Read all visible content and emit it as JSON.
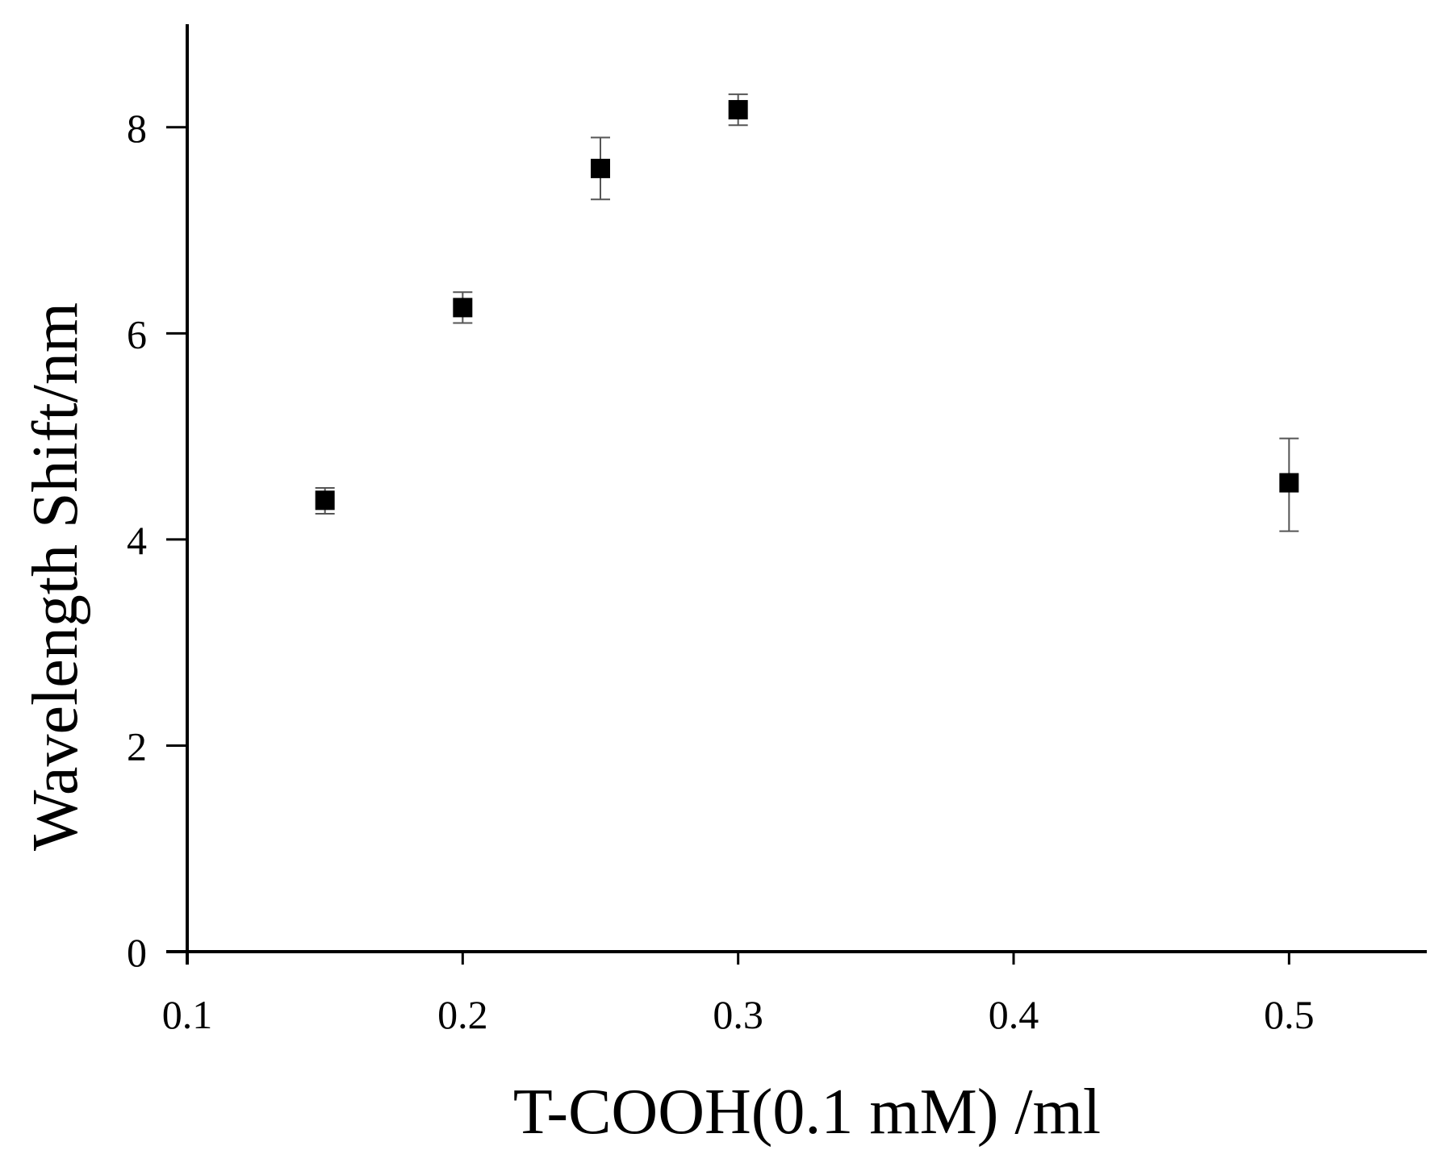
{
  "chart_data": {
    "type": "scatter",
    "title": "",
    "xlabel": "T-COOH(0.1 mM) /ml",
    "ylabel": "Wavelength Shift/nm",
    "xlim": [
      0.1,
      0.55
    ],
    "ylim": [
      0,
      9
    ],
    "xticks": [
      0.1,
      0.2,
      0.3,
      0.4,
      0.5
    ],
    "xtick_labels": [
      "0.1",
      "0.2",
      "0.3",
      "0.4",
      "0.5"
    ],
    "yticks": [
      0,
      2,
      4,
      6,
      8
    ],
    "ytick_labels": [
      "0",
      "2",
      "4",
      "6",
      "8"
    ],
    "grid": false,
    "legend": "none",
    "series": [
      {
        "marker": "square",
        "color": "#000000",
        "points": [
          {
            "x": 0.15,
            "y": 4.38,
            "err_low": 4.25,
            "err_high": 4.5
          },
          {
            "x": 0.2,
            "y": 6.25,
            "err_low": 6.1,
            "err_high": 6.4
          },
          {
            "x": 0.25,
            "y": 7.6,
            "err_low": 7.3,
            "err_high": 7.9
          },
          {
            "x": 0.3,
            "y": 8.17,
            "err_low": 8.02,
            "err_high": 8.32
          },
          {
            "x": 0.5,
            "y": 4.55,
            "err_low": 4.08,
            "err_high": 4.98
          }
        ]
      }
    ]
  }
}
